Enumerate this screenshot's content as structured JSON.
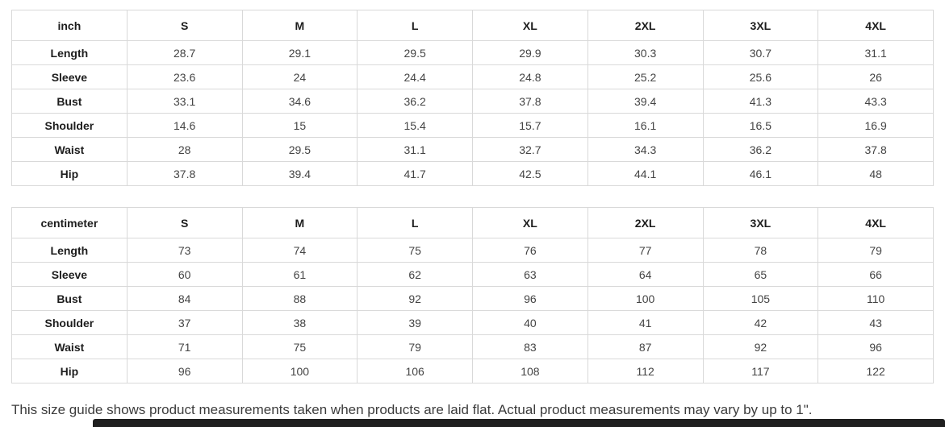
{
  "tables": [
    {
      "unit_label": "inch",
      "sizes": [
        "S",
        "M",
        "L",
        "XL",
        "2XL",
        "3XL",
        "4XL"
      ],
      "rows": [
        {
          "label": "Length",
          "values": [
            "28.7",
            "29.1",
            "29.5",
            "29.9",
            "30.3",
            "30.7",
            "31.1"
          ]
        },
        {
          "label": "Sleeve",
          "values": [
            "23.6",
            "24",
            "24.4",
            "24.8",
            "25.2",
            "25.6",
            "26"
          ]
        },
        {
          "label": "Bust",
          "values": [
            "33.1",
            "34.6",
            "36.2",
            "37.8",
            "39.4",
            "41.3",
            "43.3"
          ]
        },
        {
          "label": "Shoulder",
          "values": [
            "14.6",
            "15",
            "15.4",
            "15.7",
            "16.1",
            "16.5",
            "16.9"
          ]
        },
        {
          "label": "Waist",
          "values": [
            "28",
            "29.5",
            "31.1",
            "32.7",
            "34.3",
            "36.2",
            "37.8"
          ]
        },
        {
          "label": "Hip",
          "values": [
            "37.8",
            "39.4",
            "41.7",
            "42.5",
            "44.1",
            "46.1",
            "48"
          ]
        }
      ]
    },
    {
      "unit_label": "centimeter",
      "sizes": [
        "S",
        "M",
        "L",
        "XL",
        "2XL",
        "3XL",
        "4XL"
      ],
      "rows": [
        {
          "label": "Length",
          "values": [
            "73",
            "74",
            "75",
            "76",
            "77",
            "78",
            "79"
          ]
        },
        {
          "label": "Sleeve",
          "values": [
            "60",
            "61",
            "62",
            "63",
            "64",
            "65",
            "66"
          ]
        },
        {
          "label": "Bust",
          "values": [
            "84",
            "88",
            "92",
            "96",
            "100",
            "105",
            "110"
          ]
        },
        {
          "label": "Shoulder",
          "values": [
            "37",
            "38",
            "39",
            "40",
            "41",
            "42",
            "43"
          ]
        },
        {
          "label": "Waist",
          "values": [
            "71",
            "75",
            "79",
            "83",
            "87",
            "92",
            "96"
          ]
        },
        {
          "label": "Hip",
          "values": [
            "96",
            "100",
            "106",
            "108",
            "112",
            "117",
            "122"
          ]
        }
      ]
    }
  ],
  "note": "This size guide shows product measurements taken when products are laid flat. Actual product measurements may vary by up to 1\".",
  "colors": {
    "background": "#ffffff",
    "table_border": "#d9d9d9",
    "header_text": "#1d1d1d",
    "value_text": "#444444",
    "note_text": "#3c3c3c",
    "bottom_bar": "#1f1f1f"
  }
}
